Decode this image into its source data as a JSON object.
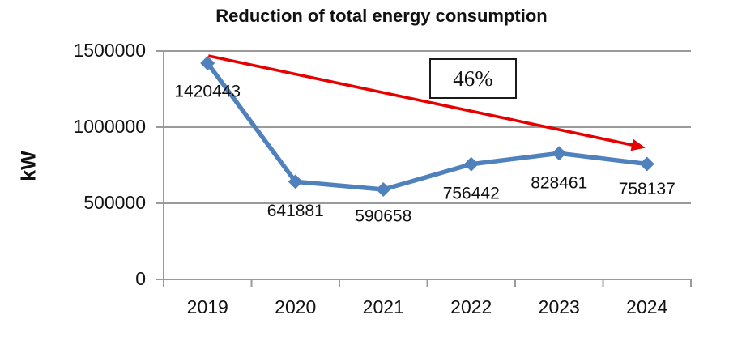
{
  "chart_data": {
    "type": "line",
    "title": "Reduction of total energy consumption",
    "ylabel": "kW",
    "categories": [
      "2019",
      "2020",
      "2021",
      "2022",
      "2023",
      "2024"
    ],
    "series": [
      {
        "values": [
          1420443,
          641881,
          590658,
          756442,
          828461,
          758137
        ],
        "data_labels": [
          "1420443",
          "641881",
          "590658",
          "756442",
          "828461",
          "758137"
        ],
        "color": "#4f81bd",
        "marker": "diamond"
      }
    ],
    "ylim": [
      0,
      1500000
    ],
    "y_ticks": [
      0,
      500000,
      1000000,
      1500000
    ],
    "y_tick_labels": [
      "0",
      "500000",
      "1000000",
      "1500000"
    ],
    "grid": true,
    "legend": "none",
    "annotation_box": {
      "text": "46%"
    },
    "trend_arrow": {
      "color": "#e60000"
    },
    "axis_color": "#9a9a9a",
    "text_color": "#111111"
  }
}
